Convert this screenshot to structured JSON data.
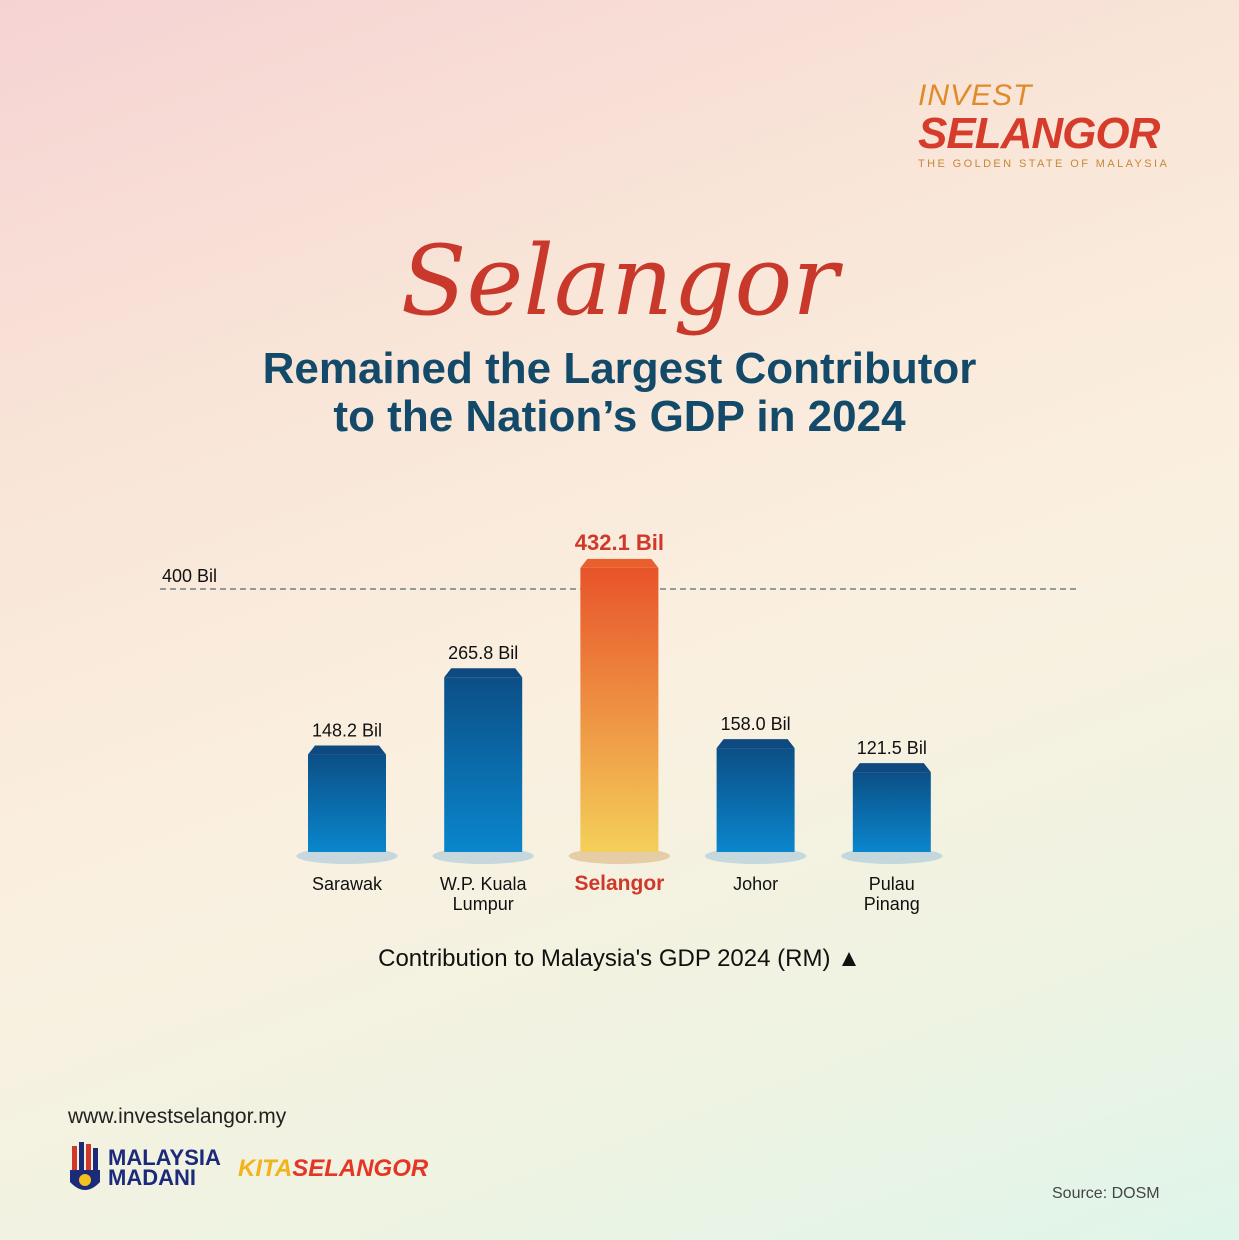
{
  "logo": {
    "line1": "INVEST",
    "line2": "SELANGOR",
    "tagline": "THE GOLDEN STATE OF MALAYSIA"
  },
  "headline": {
    "script": "Selangor",
    "line1": "Remained the Largest Contributor",
    "line2": "to the Nation’s GDP in 2024"
  },
  "chart_data": {
    "type": "bar",
    "categories": [
      "Sarawak",
      "W.P. Kuala Lumpur",
      "Selangor",
      "Johor",
      "Pulau Pinang"
    ],
    "category_lines": [
      [
        "Sarawak"
      ],
      [
        "W.P. Kuala",
        "Lumpur"
      ],
      [
        "Selangor"
      ],
      [
        "Johor"
      ],
      [
        "Pulau",
        "Pinang"
      ]
    ],
    "values": [
      148.2,
      265.8,
      432.1,
      158.0,
      121.5
    ],
    "data_labels": [
      "148.2 Bil",
      "265.8 Bil",
      "432.1 Bil",
      "158.0 Bil",
      "121.5 Bil"
    ],
    "highlight": "Selangor",
    "reference_line": {
      "value": 400,
      "label": "400 Bil"
    },
    "xlabel": "Contribution to Malaysia's GDP 2024 (RM) ▲",
    "ylim": [
      0,
      440
    ],
    "colors": {
      "bar": "#0a6fb0",
      "highlight_top": "#e8532a",
      "highlight_bottom": "#f4cf5a",
      "highlight_text": "#d0392a"
    }
  },
  "footer": {
    "url": "www.investselangor.my",
    "madani": [
      "MALAYSIA",
      "MADANI"
    ],
    "kita_a": "KITA",
    "kita_b": "SELANGOR",
    "source": "Source: DOSM"
  }
}
